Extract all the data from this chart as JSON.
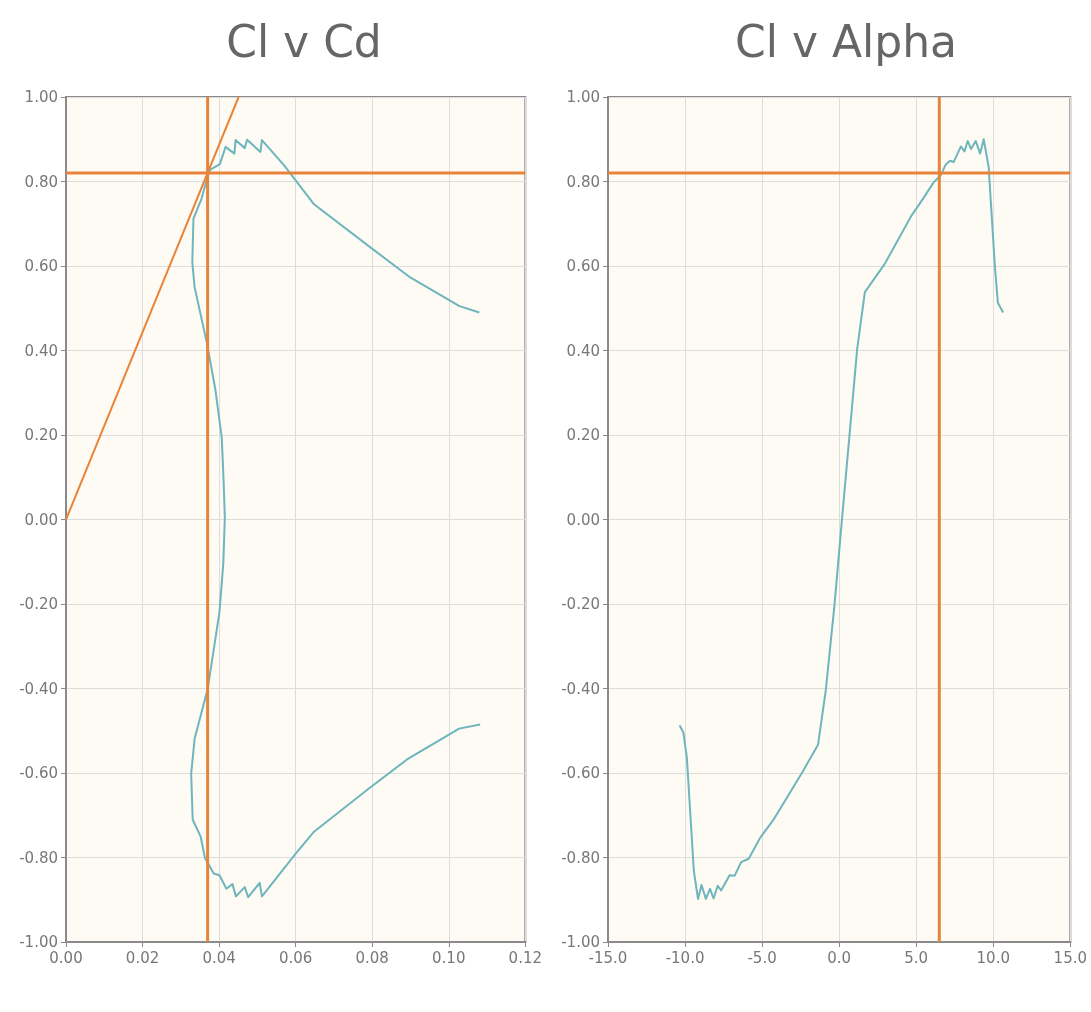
{
  "chart_data": [
    {
      "type": "line",
      "title": "Cl v Cd",
      "marker": "none",
      "line_style": "solid",
      "grid": true,
      "xlim": [
        0,
        0.12
      ],
      "xticks": [
        {
          "value": 0,
          "label": "0.00"
        },
        {
          "value": 0.02,
          "label": "0.02"
        },
        {
          "value": 0.04,
          "label": "0.04"
        },
        {
          "value": 0.06,
          "label": "0.06"
        },
        {
          "value": 0.08,
          "label": "0.08"
        },
        {
          "value": 0.1,
          "label": "0.10"
        },
        {
          "value": 0.12,
          "label": "0.12"
        }
      ],
      "ylim": [
        -1,
        1
      ],
      "yticks": [
        {
          "value": -1,
          "label": "-1.00"
        },
        {
          "value": -0.8,
          "label": "-0.80"
        },
        {
          "value": -0.6,
          "label": "-0.60"
        },
        {
          "value": -0.4,
          "label": "-0.40"
        },
        {
          "value": -0.2,
          "label": "-0.20"
        },
        {
          "value": 0,
          "label": "0.00"
        },
        {
          "value": 0.2,
          "label": "0.20"
        },
        {
          "value": 0.4,
          "label": "0.40"
        },
        {
          "value": 0.6,
          "label": "0.60"
        },
        {
          "value": 0.8,
          "label": "0.80"
        },
        {
          "value": 1,
          "label": "1.00"
        }
      ],
      "series": [
        {
          "color": "#6fb5bd",
          "x": [
            0.1082,
            0.1027,
            0.0891,
            0.0788,
            0.0648,
            0.0598,
            0.0512,
            0.0506,
            0.0476,
            0.0467,
            0.0444,
            0.0435,
            0.0419,
            0.0401,
            0.0386,
            0.0363,
            0.0352,
            0.0331,
            0.0327,
            0.0336,
            0.037,
            0.0401,
            0.0411,
            0.0415,
            0.0412,
            0.0407,
            0.039,
            0.0368,
            0.0336,
            0.033,
            0.0333,
            0.0354,
            0.0371,
            0.0377,
            0.0402,
            0.0417,
            0.044,
            0.0443,
            0.0467,
            0.0473,
            0.0508,
            0.0512,
            0.0571,
            0.0648,
            0.0797,
            0.0896,
            0.1028,
            0.108
          ],
          "values": [
            -0.485,
            -0.495,
            -0.568,
            -0.639,
            -0.739,
            -0.793,
            -0.892,
            -0.86,
            -0.894,
            -0.87,
            -0.892,
            -0.863,
            -0.874,
            -0.842,
            -0.838,
            -0.801,
            -0.751,
            -0.71,
            -0.602,
            -0.519,
            -0.402,
            -0.219,
            -0.103,
            0.005,
            0.085,
            0.193,
            0.309,
            0.418,
            0.55,
            0.608,
            0.712,
            0.759,
            0.815,
            0.828,
            0.841,
            0.882,
            0.866,
            0.898,
            0.879,
            0.899,
            0.87,
            0.898,
            0.837,
            0.746,
            0.643,
            0.575,
            0.505,
            0.49
          ]
        },
        {
          "color": "#e8843a",
          "x": [
            0,
            0.0451
          ],
          "values": [
            0,
            1
          ]
        }
      ],
      "ref_lines": [
        {
          "axis": "x",
          "value": 0.037,
          "color": "#e8843a"
        },
        {
          "axis": "y",
          "value": 0.82,
          "color": "#e8843a"
        }
      ]
    },
    {
      "type": "line",
      "title": "Cl v Alpha",
      "marker": "none",
      "line_style": "solid",
      "grid": true,
      "xlim": [
        -15,
        15
      ],
      "xticks": [
        {
          "value": -15,
          "label": "-15.0"
        },
        {
          "value": -10,
          "label": "-10.0"
        },
        {
          "value": -5,
          "label": "-5.0"
        },
        {
          "value": 0,
          "label": "0.0"
        },
        {
          "value": 5,
          "label": "5.0"
        },
        {
          "value": 10,
          "label": "10.0"
        },
        {
          "value": 15,
          "label": "15.0"
        }
      ],
      "ylim": [
        -1,
        1
      ],
      "yticks": [
        {
          "value": -1,
          "label": "-1.00"
        },
        {
          "value": -0.8,
          "label": "-0.80"
        },
        {
          "value": -0.6,
          "label": "-0.60"
        },
        {
          "value": -0.4,
          "label": "-0.40"
        },
        {
          "value": -0.2,
          "label": "-0.20"
        },
        {
          "value": 0,
          "label": "0.00"
        },
        {
          "value": 0.2,
          "label": "0.20"
        },
        {
          "value": 0.4,
          "label": "0.40"
        },
        {
          "value": 0.6,
          "label": "0.60"
        },
        {
          "value": 0.8,
          "label": "0.80"
        },
        {
          "value": 1,
          "label": "1.00"
        }
      ],
      "series": [
        {
          "color": "#6fb5bd",
          "x": [
            -10.36,
            -10.11,
            -9.88,
            -9.43,
            -9.16,
            -8.93,
            -8.65,
            -8.38,
            -8.15,
            -7.88,
            -7.66,
            -7.11,
            -6.78,
            -6.36,
            -5.87,
            -5.12,
            -4.27,
            -2.39,
            -1.37,
            -0.87,
            -0.31,
            0.11,
            1.17,
            1.67,
            2.96,
            4.67,
            5.46,
            6.13,
            6.58,
            6.93,
            7.2,
            7.43,
            7.9,
            8.13,
            8.34,
            8.56,
            8.86,
            9.15,
            9.38,
            9.7,
            10.11,
            10.3,
            10.64
          ],
          "values": [
            -0.487,
            -0.504,
            -0.565,
            -0.832,
            -0.898,
            -0.865,
            -0.898,
            -0.874,
            -0.897,
            -0.867,
            -0.878,
            -0.842,
            -0.843,
            -0.811,
            -0.803,
            -0.753,
            -0.711,
            -0.598,
            -0.533,
            -0.405,
            -0.205,
            -0.03,
            0.404,
            0.538,
            0.605,
            0.718,
            0.76,
            0.798,
            0.814,
            0.841,
            0.849,
            0.846,
            0.883,
            0.871,
            0.896,
            0.877,
            0.896,
            0.866,
            0.9,
            0.835,
            0.597,
            0.513,
            0.49
          ]
        }
      ],
      "ref_lines": [
        {
          "axis": "x",
          "value": 6.5,
          "color": "#e8843a"
        },
        {
          "axis": "y",
          "value": 0.82,
          "color": "#e8843a"
        }
      ]
    }
  ]
}
